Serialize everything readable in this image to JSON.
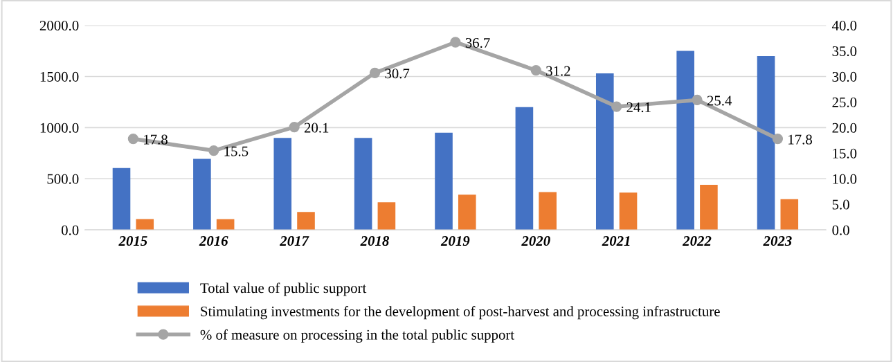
{
  "chart_data": {
    "type": "bar",
    "categories": [
      "2015",
      "2016",
      "2017",
      "2018",
      "2019",
      "2020",
      "2021",
      "2022",
      "2023"
    ],
    "series": [
      {
        "name": "Total value of public support",
        "color": "#4472c4",
        "values": [
          605,
          695,
          900,
          900,
          950,
          1200,
          1530,
          1750,
          1700
        ]
      },
      {
        "name": "Stimulating investments for the development of post-harvest and processing infrastructure",
        "color": "#ed7d31",
        "values": [
          105,
          105,
          175,
          270,
          345,
          370,
          365,
          440,
          300
        ]
      },
      {
        "name": "% of measure on processing in the total public support",
        "color": "#a5a5a5",
        "type": "line",
        "axis": "y2",
        "marker": "circle",
        "data_labels": true,
        "values": [
          17.8,
          15.5,
          20.1,
          30.7,
          36.7,
          31.2,
          24.1,
          25.4,
          17.8
        ]
      }
    ],
    "ylim": [
      0,
      2000
    ],
    "yticks": [
      {
        "value": 0,
        "label": "0.0"
      },
      {
        "value": 500,
        "label": "500.0"
      },
      {
        "value": 1000,
        "label": "1000.0"
      },
      {
        "value": 1500,
        "label": "1500.0"
      },
      {
        "value": 2000,
        "label": "2000.0"
      }
    ],
    "y2lim": [
      0,
      40
    ],
    "y2ticks": [
      {
        "value": 0,
        "label": "0.0"
      },
      {
        "value": 5,
        "label": "5.0"
      },
      {
        "value": 10,
        "label": "10.0"
      },
      {
        "value": 15,
        "label": "15.0"
      },
      {
        "value": 20,
        "label": "20.0"
      },
      {
        "value": 25,
        "label": "25.0"
      },
      {
        "value": 30,
        "label": "30.0"
      },
      {
        "value": 35,
        "label": "35.0"
      },
      {
        "value": 40,
        "label": "40.0"
      }
    ],
    "grid": "y",
    "legend": "bottom"
  }
}
